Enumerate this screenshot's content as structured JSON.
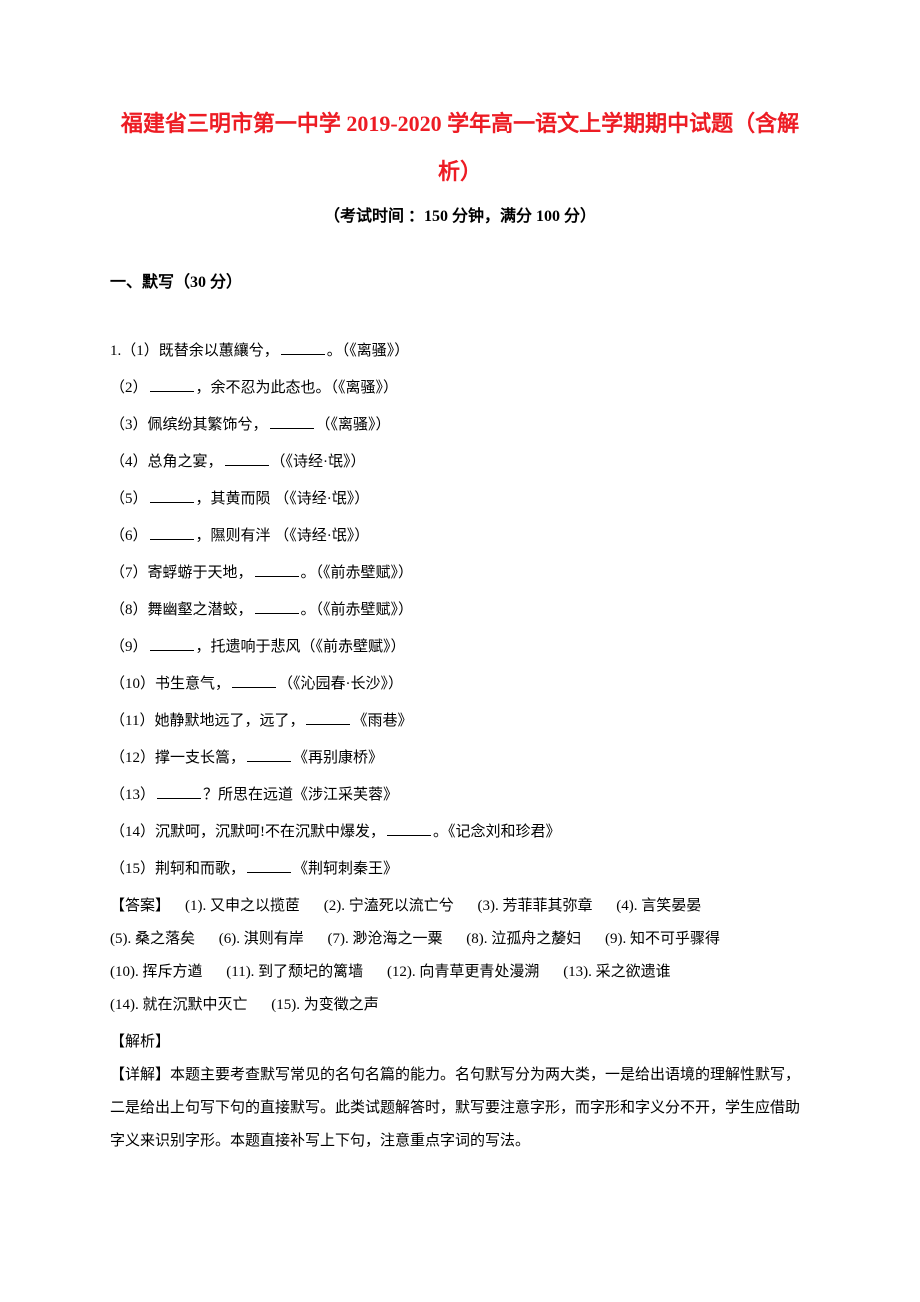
{
  "title": "福建省三明市第一中学 2019-2020 学年高一语文上学期期中试题（含解析）",
  "exam_info": "（考试时间 ：150 分钟，满分 100 分）",
  "section_header": "一、默写（30 分）",
  "wavy_color": "#555555",
  "questions": [
    {
      "prefix": "1.（1）既替余以蕙纕兮，",
      "suffix": "。（《离骚》）"
    },
    {
      "prefix": "（2）",
      "suffix": "，余不忍为此态也。（《离骚》）"
    },
    {
      "prefix": "（3）佩缤纷其繁饰兮，",
      "suffix": "（《离骚》）"
    },
    {
      "prefix": "（4）总角之宴，",
      "suffix": "（《诗经·氓》）"
    },
    {
      "prefix": "（5）",
      "suffix": "，其黄而陨    （《诗经·氓》）"
    },
    {
      "prefix": "（6）",
      "suffix": "，隰则有泮    （《诗经·氓》）"
    },
    {
      "prefix": "（7）寄蜉蝣于天地，",
      "suffix": "。（《前赤壁赋》）"
    },
    {
      "prefix": "（8）舞幽壑之潜蛟，",
      "suffix": "。（《前赤壁赋》）"
    },
    {
      "prefix": "（9）",
      "suffix": "，托遗响于悲风（《前赤壁赋》）"
    },
    {
      "prefix": "（10）书生意气，",
      "suffix": "（《沁园春·长沙》）"
    },
    {
      "prefix": "（11）她静默地远了，远了，",
      "suffix": "《雨巷》"
    },
    {
      "prefix": "（12）撑一支长篙，",
      "suffix": "《再别康桥》"
    },
    {
      "prefix": "（13）",
      "suffix": "？所思在远道《涉江采芙蓉》"
    },
    {
      "prefix": "（14）沉默呵，沉默呵!不在沉默中爆发，",
      "suffix": "。《记念刘和珍君》"
    },
    {
      "prefix": "（15）荆轲和而歌，",
      "suffix": "《荆轲刺秦王》"
    }
  ],
  "answer_label": "【答案】",
  "answers": [
    {
      "n": "(1).",
      "t": "又申之以揽茝"
    },
    {
      "n": "(2).",
      "t": "宁溘死以流亡兮"
    },
    {
      "n": "(3).",
      "t": "芳菲菲其弥章"
    },
    {
      "n": "(4).",
      "t": "言笑晏晏"
    },
    {
      "n": "(5).",
      "t": "桑之落矣"
    },
    {
      "n": "(6).",
      "t": "淇则有岸"
    },
    {
      "n": "(7).",
      "t": "渺沧海之一粟"
    },
    {
      "n": "(8).",
      "t": "泣孤舟之嫠妇"
    },
    {
      "n": "(9).",
      "t": "知不可乎骤得"
    },
    {
      "n": "(10).",
      "t": "挥斥方遒"
    },
    {
      "n": "(11).",
      "t": "到了颓圮的篱墙"
    },
    {
      "n": "(12).",
      "t": "向青草更青处漫溯"
    },
    {
      "n": "(13).",
      "t": "采之欲遗谁"
    },
    {
      "n": "(14).",
      "t": "就在沉默中灭亡"
    },
    {
      "n": "(15).",
      "t": "为变徵之声"
    }
  ],
  "analysis_label": "【解析】",
  "detail_label": "【详解】",
  "detail_text": "本题主要考查默写常见的名句名篇的能力。名句默写分为两大类，一是给出语境的理解性默写，二是给出上句写下句的直接默写。此类试题解答时，默写要注意字形，而字形和字义分不开，学生应借助字义来识别字形。本题直接补写上下句，注意重点字词的写法。"
}
